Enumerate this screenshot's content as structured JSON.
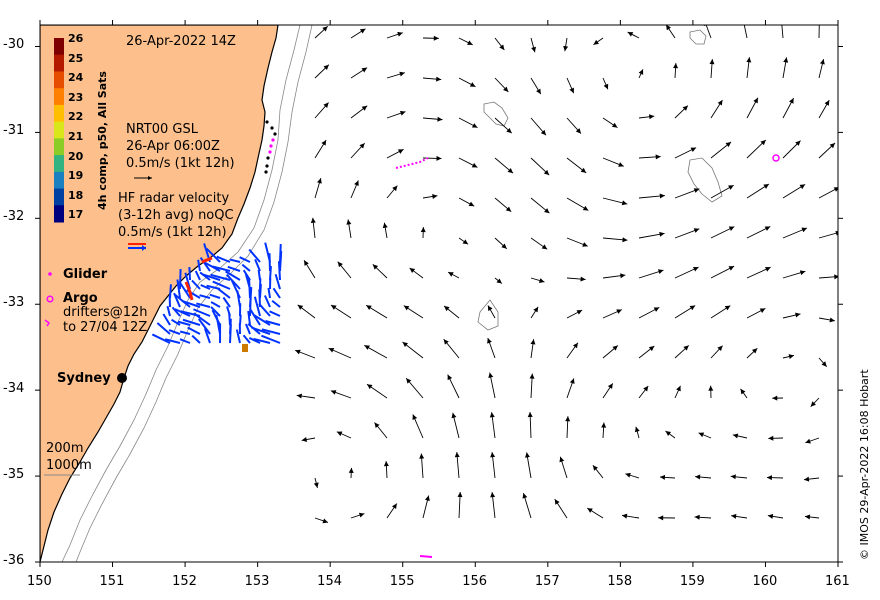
{
  "timestamp": "26-Apr-2022 14Z",
  "colorbar": {
    "title": "4h comp, p50, All Sats",
    "ticks": [
      "26",
      "25",
      "24",
      "23",
      "22",
      "21",
      "20",
      "19",
      "18",
      "17"
    ],
    "colors": [
      "#7f0000",
      "#b31a00",
      "#e64d00",
      "#ff8000",
      "#ffbf00",
      "#d9e619",
      "#8ccc26",
      "#33b380",
      "#1a80c0",
      "#0040a0",
      "#00007f"
    ]
  },
  "legend": {
    "nrt_line1": "NRT00 GSL",
    "nrt_line2": "26-Apr 06:00Z",
    "nrt_line3": "0.5m/s (1kt 12h)",
    "hf_line1": "HF radar velocity",
    "hf_line2": "(3-12h avg) noQC",
    "hf_line3": "0.5m/s (1kt 12h)",
    "glider": "Glider",
    "argo": "Argo",
    "drifters_line1": "drifters@12h",
    "drifters_line2": "to 27/04 12Z",
    "city": "Sydney",
    "iso200": "200m",
    "iso1000": "1000m"
  },
  "axes": {
    "x_ticks": [
      "150",
      "151",
      "152",
      "153",
      "154",
      "155",
      "156",
      "157",
      "158",
      "159",
      "160",
      "161"
    ],
    "y_ticks": [
      "-30",
      "-31",
      "-32",
      "-33",
      "-34",
      "-35",
      "-36"
    ],
    "x_range": [
      150,
      161
    ],
    "y_range": [
      -36,
      -29.75
    ]
  },
  "credit": "© IMOS 29-Apr-2022 16:08 Hobart",
  "colors": {
    "land": "#fdc08c",
    "hf_radar": "#0033ff",
    "glider": "#ff00ff",
    "argo": "#ff00ff",
    "drifter_red": "#ff2200",
    "arrow": "#000000"
  }
}
